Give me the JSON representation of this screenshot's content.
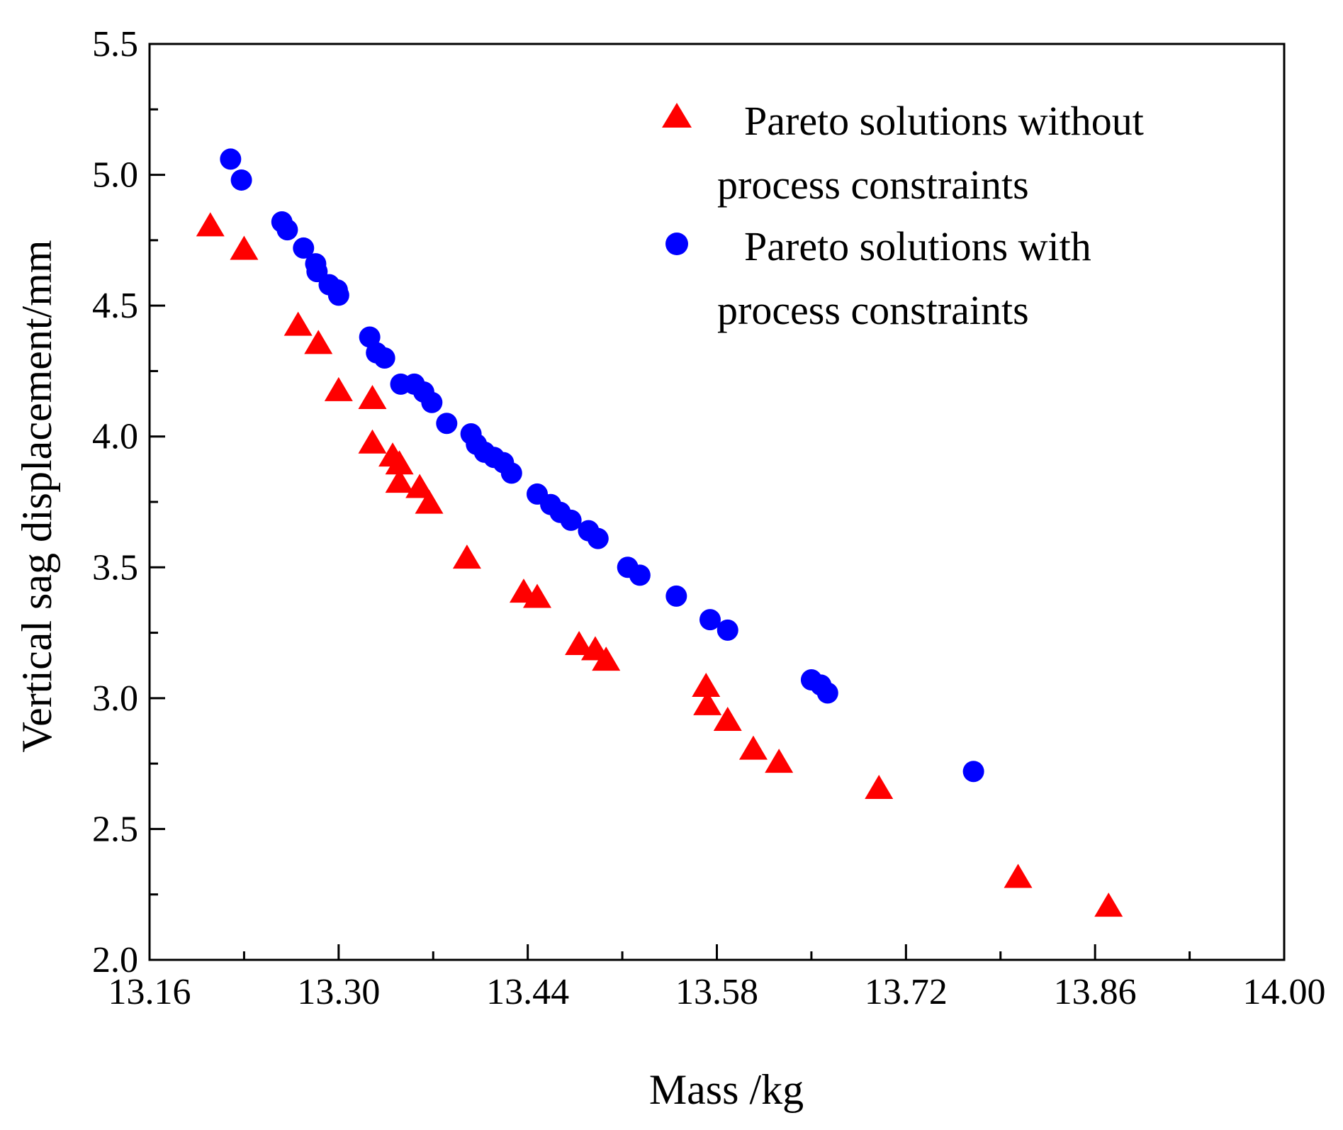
{
  "chart_data": {
    "type": "scatter",
    "title": "",
    "xlabel": "Mass /kg",
    "ylabel": "Vertical sag displacement/mm",
    "xlim": [
      13.16,
      14.0
    ],
    "ylim": [
      2.0,
      5.5
    ],
    "xticks": [
      "13.16",
      "13.30",
      "13.44",
      "13.58",
      "13.72",
      "13.86",
      "14.00"
    ],
    "yticks": [
      "2.0",
      "2.5",
      "3.0",
      "3.5",
      "4.0",
      "4.5",
      "5.0",
      "5.5"
    ],
    "grid": false,
    "legend_position": "top-right",
    "series": [
      {
        "name": "Pareto solutions without process constraints",
        "legend_lines": [
          "Pareto solutions without",
          "process constraints"
        ],
        "marker": "triangle",
        "color": "#ff0000",
        "points": [
          [
            13.205,
            4.8
          ],
          [
            13.23,
            4.71
          ],
          [
            13.27,
            4.42
          ],
          [
            13.285,
            4.35
          ],
          [
            13.3,
            4.17
          ],
          [
            13.325,
            4.14
          ],
          [
            13.325,
            3.97
          ],
          [
            13.34,
            3.92
          ],
          [
            13.345,
            3.89
          ],
          [
            13.345,
            3.82
          ],
          [
            13.36,
            3.8
          ],
          [
            13.367,
            3.74
          ],
          [
            13.395,
            3.53
          ],
          [
            13.437,
            3.4
          ],
          [
            13.447,
            3.38
          ],
          [
            13.478,
            3.2
          ],
          [
            13.49,
            3.18
          ],
          [
            13.498,
            3.14
          ],
          [
            13.572,
            3.04
          ],
          [
            13.573,
            2.97
          ],
          [
            13.588,
            2.91
          ],
          [
            13.607,
            2.8
          ],
          [
            13.626,
            2.75
          ],
          [
            13.7,
            2.65
          ],
          [
            13.803,
            2.31
          ],
          [
            13.87,
            2.2
          ]
        ]
      },
      {
        "name": "Pareto solutions with process constraints",
        "legend_lines": [
          "Pareto solutions with",
          "process constraints"
        ],
        "marker": "circle",
        "color": "#0000ff",
        "points": [
          [
            13.22,
            5.06
          ],
          [
            13.228,
            4.98
          ],
          [
            13.258,
            4.82
          ],
          [
            13.262,
            4.79
          ],
          [
            13.274,
            4.72
          ],
          [
            13.283,
            4.66
          ],
          [
            13.284,
            4.63
          ],
          [
            13.293,
            4.58
          ],
          [
            13.299,
            4.56
          ],
          [
            13.3,
            4.54
          ],
          [
            13.323,
            4.38
          ],
          [
            13.328,
            4.32
          ],
          [
            13.334,
            4.3
          ],
          [
            13.346,
            4.2
          ],
          [
            13.356,
            4.2
          ],
          [
            13.363,
            4.17
          ],
          [
            13.369,
            4.13
          ],
          [
            13.38,
            4.05
          ],
          [
            13.398,
            4.01
          ],
          [
            13.402,
            3.97
          ],
          [
            13.408,
            3.94
          ],
          [
            13.415,
            3.92
          ],
          [
            13.422,
            3.9
          ],
          [
            13.428,
            3.86
          ],
          [
            13.447,
            3.78
          ],
          [
            13.457,
            3.74
          ],
          [
            13.464,
            3.71
          ],
          [
            13.472,
            3.68
          ],
          [
            13.485,
            3.64
          ],
          [
            13.492,
            3.61
          ],
          [
            13.514,
            3.5
          ],
          [
            13.523,
            3.47
          ],
          [
            13.55,
            3.39
          ],
          [
            13.575,
            3.3
          ],
          [
            13.588,
            3.26
          ],
          [
            13.65,
            3.07
          ],
          [
            13.657,
            3.05
          ],
          [
            13.662,
            3.02
          ],
          [
            13.77,
            2.72
          ]
        ]
      }
    ]
  }
}
